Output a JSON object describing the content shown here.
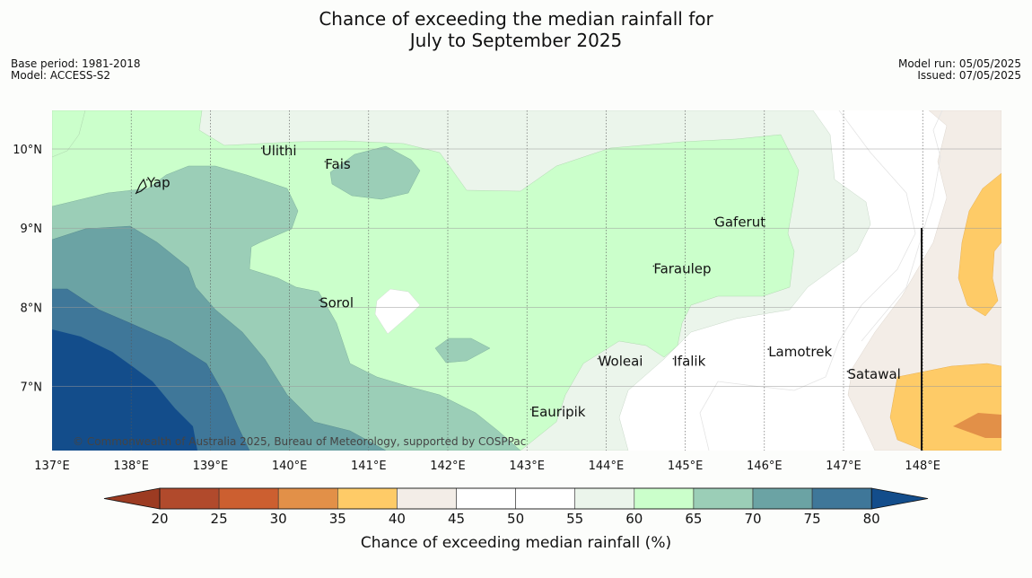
{
  "title_line1": "Chance of exceeding the median rainfall for",
  "title_line2": "July to September 2025",
  "meta_left": [
    "Base period: 1981-2018",
    "Model: ACCESS-S2"
  ],
  "meta_right": [
    "Model run: 05/05/2025",
    "Issued: 07/05/2025"
  ],
  "map": {
    "lon_range": [
      137,
      149
    ],
    "lat_range": [
      6.2,
      10.5
    ],
    "lon_ticks": [
      "137°E",
      "138°E",
      "139°E",
      "140°E",
      "141°E",
      "142°E",
      "143°E",
      "144°E",
      "145°E",
      "146°E",
      "147°E",
      "148°E"
    ],
    "lat_ticks": [
      "7°N",
      "8°N",
      "9°N",
      "10°N"
    ],
    "places": [
      {
        "name": "Ulithi",
        "lon": 139.65,
        "lat": 9.92
      },
      {
        "name": "Fais",
        "lon": 140.45,
        "lat": 9.75
      },
      {
        "name": "Yap",
        "lon": 138.2,
        "lat": 9.52
      },
      {
        "name": "Gaferut",
        "lon": 145.37,
        "lat": 9.02
      },
      {
        "name": "Faraulep",
        "lon": 144.6,
        "lat": 8.43
      },
      {
        "name": "Sorol",
        "lon": 140.38,
        "lat": 8.0
      },
      {
        "name": "Lamotrek",
        "lon": 146.05,
        "lat": 7.38
      },
      {
        "name": "Woleai",
        "lon": 143.9,
        "lat": 7.26
      },
      {
        "name": "Ifalik",
        "lon": 144.85,
        "lat": 7.26
      },
      {
        "name": "Satawal",
        "lon": 147.05,
        "lat": 7.1
      },
      {
        "name": "Eauripik",
        "lon": 143.05,
        "lat": 6.62
      }
    ],
    "copyright": "© Commonwealth of Australia 2025, Bureau of Meteorology, supported by COSPPac"
  },
  "colorbar": {
    "levels": [
      "20",
      "25",
      "30",
      "35",
      "40",
      "45",
      "50",
      "55",
      "60",
      "65",
      "70",
      "75",
      "80"
    ],
    "colors": [
      "#b14a2c",
      "#cc5f30",
      "#e29048",
      "#fecb67",
      "#f3ede7",
      "#ffffff",
      "#ffffff",
      "#ebf5eb",
      "#cbffcb",
      "#9bceb7",
      "#6ba3a4",
      "#3f7799"
    ],
    "under_color": "#9c3b22",
    "over_color": "#134d8b",
    "label": "Chance of exceeding median rainfall (%)"
  }
}
